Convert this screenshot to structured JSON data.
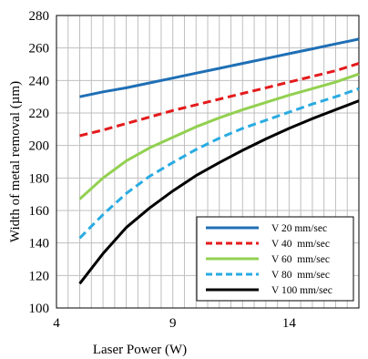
{
  "chart_data": {
    "type": "line",
    "title": "",
    "xlabel": "Laser Power (W)",
    "ylabel": "Width of metal removal (µm)",
    "xlim": [
      4,
      17
    ],
    "ylim": [
      100,
      280
    ],
    "xticks": [
      4,
      9,
      14
    ],
    "yticks": [
      100,
      120,
      140,
      160,
      180,
      200,
      220,
      240,
      260,
      280
    ],
    "grid": true,
    "legend_position": "bottom-right",
    "x": [
      5,
      6,
      7,
      8,
      9,
      10,
      11,
      12,
      13,
      14,
      15,
      16,
      17
    ],
    "series": [
      {
        "name": "V 20 mm/sec",
        "color": "#1f6fb5",
        "dash": "solid",
        "values": [
          230,
          233,
          235.5,
          238.5,
          241.5,
          244.5,
          247.5,
          250.5,
          253.5,
          256.5,
          259.5,
          262.5,
          265.5
        ]
      },
      {
        "name": "V 40  mm/sec",
        "color": "#e41a1c",
        "dash": "dashed",
        "values": [
          206,
          209.5,
          213.5,
          217.5,
          221.5,
          225,
          228.5,
          232,
          235.5,
          239,
          242.5,
          246,
          250.5
        ]
      },
      {
        "name": "V 60  mm/sec",
        "color": "#92d050",
        "dash": "solid",
        "values": [
          167,
          180,
          190.5,
          198.5,
          205,
          211.5,
          217,
          222,
          226.5,
          231,
          235,
          239,
          244
        ]
      },
      {
        "name": "V 80  mm/sec",
        "color": "#29abe2",
        "dash": "dashed",
        "values": [
          143,
          157.5,
          170.5,
          181,
          189.5,
          197.5,
          204.5,
          210.5,
          215.5,
          220.5,
          225.5,
          230,
          235
        ]
      },
      {
        "name": "V 100 mm/sec",
        "color": "#000000",
        "dash": "solid",
        "values": [
          115,
          133.5,
          149.5,
          161.5,
          172,
          181.5,
          189.5,
          197,
          204,
          210.5,
          216.5,
          222,
          227.5
        ]
      }
    ]
  }
}
